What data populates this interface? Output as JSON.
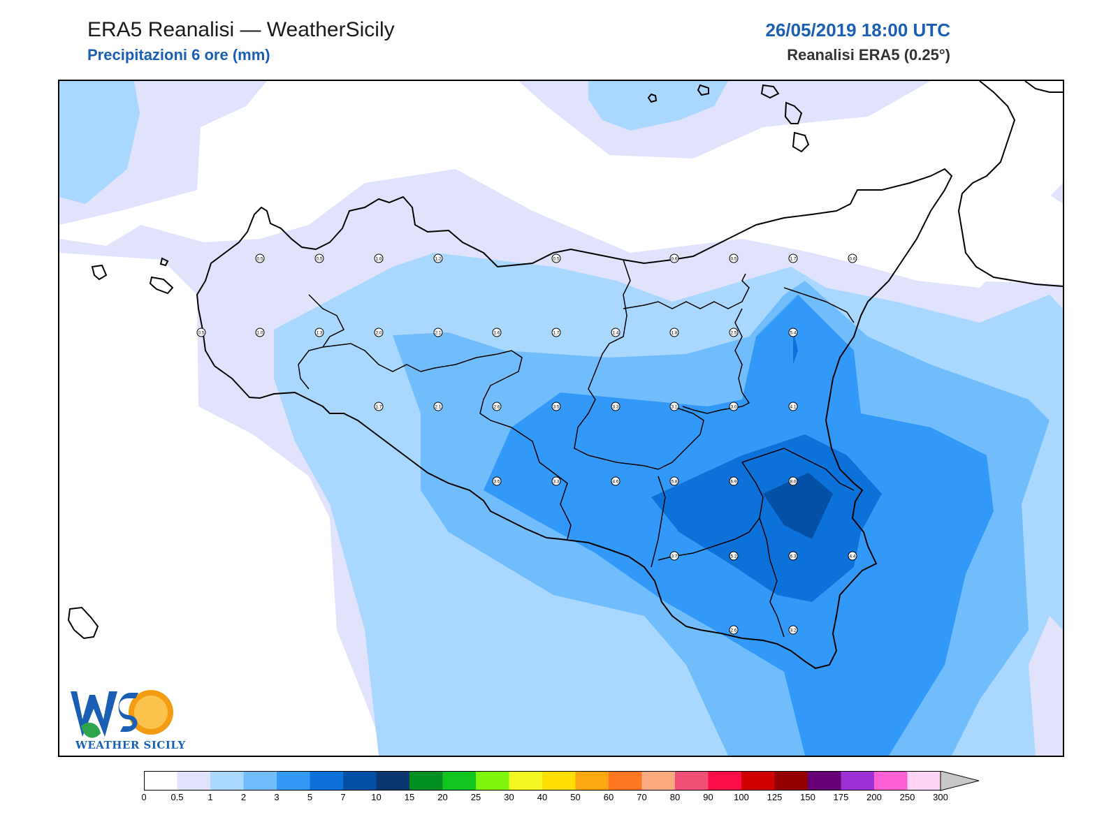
{
  "header": {
    "title": "ERA5 Reanalisi — WeatherSicily",
    "subtitle": "Precipitazioni 6 ore (mm)",
    "datetime": "26/05/2019 18:00 UTC",
    "model": "Reanalisi ERA5 (0.25°)"
  },
  "logo": {
    "text": "WEATHER SICILY",
    "mark": "WS"
  },
  "colorbar": {
    "levels": [
      "0",
      "0.5",
      "1",
      "2",
      "3",
      "5",
      "7",
      "10",
      "15",
      "20",
      "25",
      "30",
      "40",
      "50",
      "60",
      "70",
      "80",
      "90",
      "100",
      "125",
      "150",
      "175",
      "200",
      "250",
      "300"
    ],
    "colors": [
      "#ffffff",
      "#e0e3fb",
      "#aad7fd",
      "#71bdfb",
      "#3399f9",
      "#0c71d8",
      "#0450a6",
      "#0b3670",
      "#008e20",
      "#13c521",
      "#7ef50b",
      "#f2f622",
      "#fedf03",
      "#fda812",
      "#fe7620",
      "#fdaa80",
      "#f04f76",
      "#fe0e49",
      "#d00000",
      "#940000",
      "#670077",
      "#9d31d6",
      "#fc5fd3",
      "#fed3f3"
    ],
    "extend_color": "#c8c8c8"
  },
  "stations": [
    {
      "v": "0.5"
    },
    {
      "v": "0.5"
    },
    {
      "v": "1.0"
    },
    {
      "v": "1.2"
    },
    {
      "v": "0.5"
    },
    {
      "v": "0.6"
    },
    {
      "v": "0.5"
    },
    {
      "v": "1.7"
    },
    {
      "v": "0.6"
    },
    {
      "v": "0.5"
    },
    {
      "v": "1.0"
    },
    {
      "v": "1.3"
    },
    {
      "v": "2.0"
    },
    {
      "v": "2.1"
    },
    {
      "v": "1.6"
    },
    {
      "v": "1.7"
    },
    {
      "v": "1.4"
    },
    {
      "v": "1.8"
    },
    {
      "v": "2.5"
    },
    {
      "v": "5.4"
    },
    {
      "v": "1.7"
    },
    {
      "v": "2.1"
    },
    {
      "v": "2.6"
    },
    {
      "v": "3.5"
    },
    {
      "v": "3.3"
    },
    {
      "v": "3.1"
    },
    {
      "v": "3.0"
    },
    {
      "v": "4.1"
    },
    {
      "v": "3.5"
    },
    {
      "v": "3.3"
    },
    {
      "v": "4.6"
    },
    {
      "v": "5.8"
    },
    {
      "v": "6.9"
    },
    {
      "v": "8.0"
    },
    {
      "v": "3.7"
    },
    {
      "v": "5.2"
    },
    {
      "v": "6.3"
    },
    {
      "v": "4.4"
    },
    {
      "v": "2.6"
    },
    {
      "v": "3.2"
    }
  ]
}
